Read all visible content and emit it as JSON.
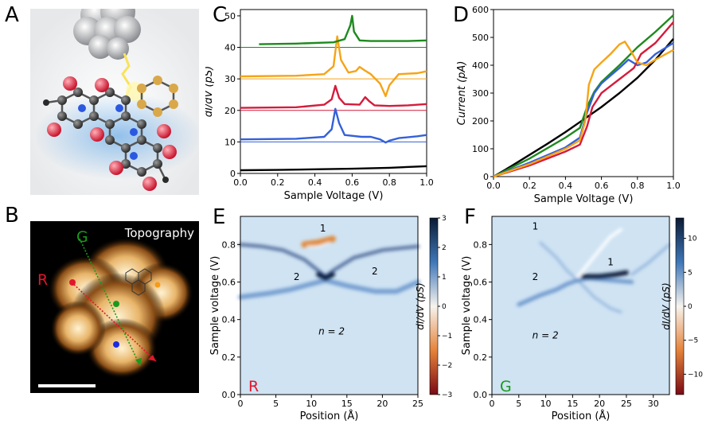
{
  "panels": {
    "A": "A",
    "B": "B",
    "C": "C",
    "D": "D",
    "E": "E",
    "F": "F"
  },
  "panel_b": {
    "label": "Topography",
    "line_r": "R",
    "line_g": "G",
    "colors": {
      "r": "#e0162b",
      "g": "#1a9a1a",
      "blue_dot": "#1a2be0",
      "orange_dot": "#f59a1a"
    }
  },
  "panel_e": {
    "corner_label": "R",
    "label_1": "1",
    "label_2a": "2",
    "label_2b": "2",
    "label_n": "n = 2"
  },
  "panel_f": {
    "corner_label": "G",
    "label_1a": "1",
    "label_1b": "1",
    "label_2": "2",
    "label_n": "n = 2"
  },
  "chart_data": [
    {
      "id": "C",
      "type": "line",
      "xlabel": "Sample Voltage (V)",
      "ylabel": "dI/dV (pS)",
      "xlim": [
        0,
        1.0
      ],
      "ylim": [
        0,
        52
      ],
      "xticks": [
        "0.0",
        "0.2",
        "0.4",
        "0.6",
        "0.8",
        "1.0"
      ],
      "yticks": [
        "0",
        "10",
        "20",
        "30",
        "40",
        "50"
      ],
      "baselines": [
        10,
        20,
        30,
        40
      ],
      "series": [
        {
          "color": "#000000",
          "x": [
            0.0,
            0.2,
            0.4,
            0.6,
            0.8,
            1.0
          ],
          "y": [
            1.0,
            1.1,
            1.3,
            1.5,
            1.8,
            2.3
          ]
        },
        {
          "color": "#3461d9",
          "x": [
            0.0,
            0.3,
            0.45,
            0.49,
            0.51,
            0.53,
            0.56,
            0.65,
            0.7,
            0.75,
            0.78,
            0.8,
            0.85,
            0.95,
            1.0
          ],
          "y": [
            10.8,
            11.0,
            11.6,
            14.0,
            20.5,
            16.0,
            12.2,
            11.6,
            11.6,
            10.8,
            9.8,
            10.4,
            11.2,
            11.8,
            12.2
          ]
        },
        {
          "color": "#d41c3c",
          "x": [
            0.0,
            0.3,
            0.45,
            0.49,
            0.51,
            0.53,
            0.56,
            0.64,
            0.67,
            0.69,
            0.72,
            0.8,
            0.9,
            1.0
          ],
          "y": [
            20.8,
            21.0,
            21.8,
            23.5,
            27.8,
            24.0,
            22.0,
            21.8,
            24.2,
            23.0,
            21.6,
            21.4,
            21.6,
            22.0
          ]
        },
        {
          "color": "#f5a417",
          "x": [
            0.0,
            0.3,
            0.45,
            0.5,
            0.52,
            0.54,
            0.58,
            0.62,
            0.64,
            0.67,
            0.7,
            0.75,
            0.78,
            0.8,
            0.85,
            0.95,
            1.0
          ],
          "y": [
            30.8,
            31.0,
            31.5,
            34.0,
            43.5,
            36.0,
            32.0,
            32.5,
            33.8,
            32.6,
            31.5,
            28.5,
            24.5,
            28.0,
            31.5,
            31.8,
            32.4
          ]
        },
        {
          "color": "#1e8a1e",
          "x": [
            0.1,
            0.3,
            0.5,
            0.56,
            0.59,
            0.6,
            0.61,
            0.64,
            0.7,
            0.9,
            1.0
          ],
          "y": [
            41.0,
            41.2,
            41.6,
            42.6,
            47.0,
            50.0,
            45.0,
            42.2,
            42.0,
            42.0,
            42.2
          ]
        }
      ]
    },
    {
      "id": "D",
      "type": "line",
      "xlabel": "Sample Voltage (V)",
      "ylabel": "Current (pA)",
      "xlim": [
        0,
        1.0
      ],
      "ylim": [
        0,
        600
      ],
      "xticks": [
        "0.0",
        "0.2",
        "0.4",
        "0.6",
        "0.8",
        "1.0"
      ],
      "yticks": [
        "0",
        "100",
        "200",
        "300",
        "400",
        "500",
        "600"
      ],
      "series": [
        {
          "color": "#000000",
          "x": [
            0.0,
            0.1,
            0.2,
            0.3,
            0.4,
            0.5,
            0.6,
            0.7,
            0.8,
            0.9,
            1.0
          ],
          "y": [
            0,
            38,
            78,
            118,
            160,
            205,
            250,
            300,
            355,
            420,
            495
          ]
        },
        {
          "color": "#1e8a1e",
          "x": [
            0.0,
            0.2,
            0.4,
            0.48,
            0.52,
            0.56,
            0.6,
            0.7,
            0.8,
            0.9,
            1.0
          ],
          "y": [
            0,
            65,
            140,
            175,
            250,
            305,
            340,
            400,
            465,
            520,
            580
          ]
        },
        {
          "color": "#3461d9",
          "x": [
            0.0,
            0.2,
            0.4,
            0.48,
            0.52,
            0.56,
            0.6,
            0.7,
            0.75,
            0.8,
            0.85,
            0.9,
            1.0
          ],
          "y": [
            0,
            50,
            105,
            140,
            230,
            300,
            335,
            390,
            420,
            400,
            410,
            440,
            480
          ]
        },
        {
          "color": "#d41c3c",
          "x": [
            0.0,
            0.2,
            0.4,
            0.48,
            0.52,
            0.55,
            0.6,
            0.7,
            0.75,
            0.78,
            0.82,
            0.9,
            1.0
          ],
          "y": [
            0,
            40,
            90,
            115,
            180,
            250,
            300,
            350,
            375,
            390,
            440,
            480,
            555
          ]
        },
        {
          "color": "#f5a417",
          "x": [
            0.0,
            0.2,
            0.4,
            0.48,
            0.51,
            0.53,
            0.56,
            0.6,
            0.65,
            0.7,
            0.73,
            0.76,
            0.8,
            0.85,
            0.9,
            1.0
          ],
          "y": [
            0,
            45,
            100,
            130,
            200,
            330,
            385,
            410,
            440,
            475,
            485,
            455,
            410,
            400,
            420,
            455
          ]
        }
      ]
    },
    {
      "id": "E",
      "type": "heatmap",
      "xlabel": "Position (Å)",
      "ylabel": "Sample voltage (V)",
      "colorbar_label": "dI/dV (pS)",
      "xlim": [
        0,
        25
      ],
      "ylim": [
        0,
        0.95
      ],
      "xticks": [
        "0",
        "5",
        "10",
        "15",
        "20",
        "25"
      ],
      "yticks": [
        "0.0",
        "0.2",
        "0.4",
        "0.6",
        "0.8"
      ],
      "cbar_ticks": [
        "3",
        "2",
        "1",
        "0",
        "−1",
        "−2",
        "−3"
      ],
      "cbar_range": [
        -3,
        3
      ]
    },
    {
      "id": "F",
      "type": "heatmap",
      "xlabel": "Position (Å)",
      "ylabel": "Sample voltage (V)",
      "colorbar_label": "dI/dV (pS)",
      "xlim": [
        0,
        33
      ],
      "ylim": [
        0,
        0.95
      ],
      "xticks": [
        "0",
        "5",
        "10",
        "15",
        "20",
        "25",
        "30"
      ],
      "yticks": [
        "0.0",
        "0.2",
        "0.4",
        "0.6",
        "0.8"
      ],
      "cbar_ticks": [
        "10",
        "5",
        "0",
        "−5",
        "−10"
      ],
      "cbar_range": [
        -13,
        13
      ]
    }
  ]
}
